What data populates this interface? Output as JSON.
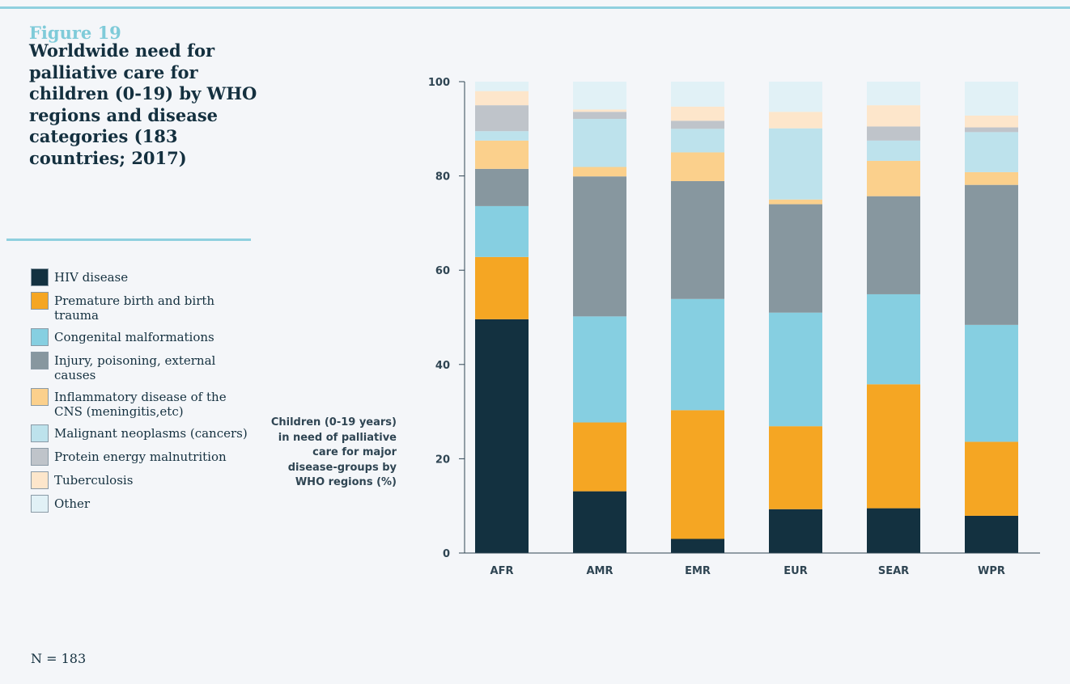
{
  "figure_label": "Figure 19",
  "figure_title": "Worldwide need for palliative care for children (0-19) by WHO regions and disease categories (183 countries; 2017)",
  "note": "N = 183",
  "chart_data": {
    "type": "bar",
    "stacked": true,
    "ylabel": "Children (0-19 years) in need of palliative care for major disease-groups by WHO regions (%)",
    "ylim": [
      0,
      100
    ],
    "yticks": [
      0,
      20,
      40,
      60,
      80,
      100
    ],
    "categories": [
      "AFR",
      "AMR",
      "EMR",
      "EUR",
      "SEAR",
      "WPR"
    ],
    "series": [
      {
        "name": "HIV disease",
        "color": "#133140",
        "values": [
          49.6,
          13.1,
          3.0,
          9.3,
          9.5,
          7.9
        ]
      },
      {
        "name": "Premature birth and birth trauma",
        "color": "#f5a623",
        "values": [
          13.2,
          14.6,
          27.3,
          17.6,
          26.3,
          15.7
        ]
      },
      {
        "name": "Congenital malformations",
        "color": "#86cfe1",
        "values": [
          10.8,
          22.5,
          23.6,
          24.1,
          19.1,
          24.8
        ]
      },
      {
        "name": "Injury, poisoning, external causes",
        "color": "#87979f",
        "values": [
          7.9,
          29.7,
          25.0,
          23.0,
          20.8,
          29.7
        ]
      },
      {
        "name": "Inflammatory disease of the CNS (meningitis,etc)",
        "color": "#fbd08c",
        "values": [
          6.0,
          2.0,
          6.1,
          1.0,
          7.5,
          2.7
        ]
      },
      {
        "name": "Malignant neoplasms (cancers)",
        "color": "#bde2ec",
        "values": [
          2.0,
          10.2,
          5.0,
          15.1,
          4.3,
          8.5
        ]
      },
      {
        "name": "Protein energy malnutrition",
        "color": "#bfc4ca",
        "values": [
          5.5,
          1.5,
          1.7,
          0.0,
          3.0,
          1.0
        ]
      },
      {
        "name": "Tuberculosis",
        "color": "#fde6cb",
        "values": [
          3.0,
          0.5,
          3.0,
          3.5,
          4.5,
          2.5
        ]
      },
      {
        "name": "Other",
        "color": "#e1f1f6",
        "values": [
          2.0,
          5.9,
          5.3,
          6.4,
          5.0,
          7.2
        ]
      }
    ]
  }
}
